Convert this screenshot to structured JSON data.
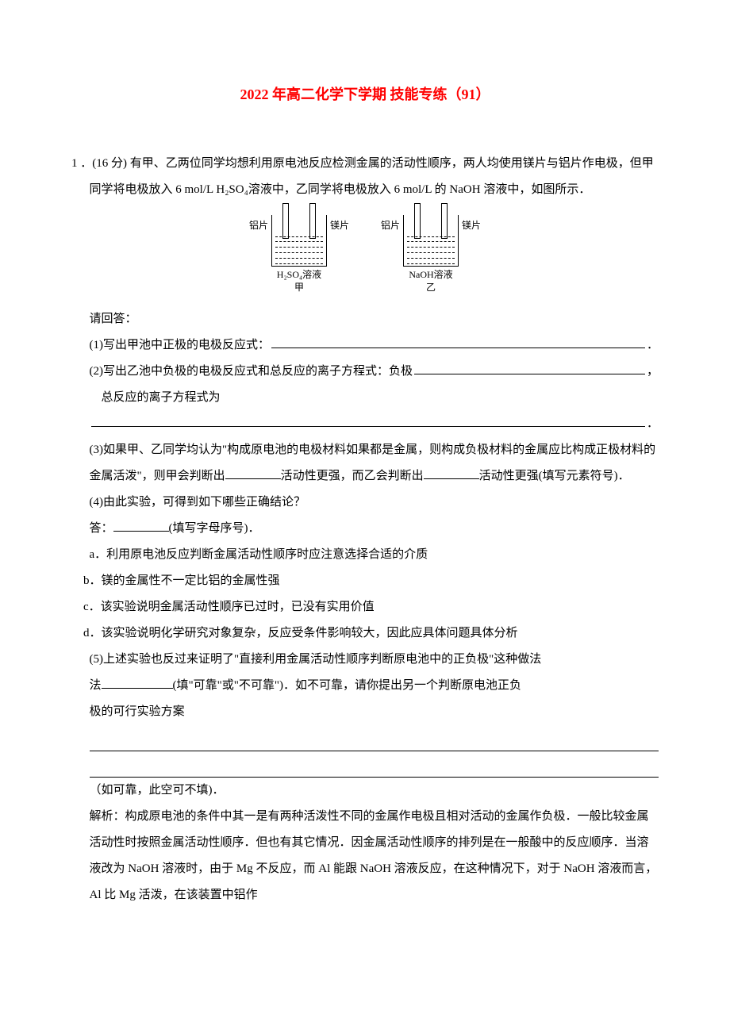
{
  "title": "2022 年高二化学下学期 技能专练（91）",
  "question": {
    "number": "1",
    "points": "．(16 分)",
    "intro": "有甲、乙两位同学均想利用原电池反应检测金属的活动性顺序，两人均使用镁片与铝片作电极，但甲同学将电极放入 6 mol/L H₂SO₄溶液中，乙同学将电极放入 6 mol/L 的 NaOH 溶液中，如图所示．"
  },
  "diagram": {
    "left": {
      "electrode_left": "铝片",
      "electrode_right": "镁片",
      "solution": "H₂SO₄溶液",
      "label": "甲"
    },
    "right": {
      "electrode_left": "铝片",
      "electrode_right": "镁片",
      "solution": "NaOH溶液",
      "label": "乙"
    }
  },
  "prompts": {
    "answer_label": "请回答：",
    "p1": "(1)写出甲池中正极的电极反应式：",
    "p1_end": "．",
    "p2_line1": "(2)写出乙池中负极的电极反应式和总反应的离子方程式：负极",
    "p2_line1_end": "，",
    "p2_line2": "总反应的离子方程式为",
    "p2_end": "．",
    "p3_part1": "(3)如果甲、乙同学均认为\"构成原电池的电极材料如果都是金属，则构成负极材料的金属应比构成正极材料的金属活泼\"，则甲会判断出",
    "p3_part2": "活动性更强，而乙会判断出",
    "p3_part3": "活动性更强(填写元素符号)．",
    "p4": "(4)由此实验，可得到如下哪些正确结论？",
    "p4_answer": "答：",
    "p4_answer_end": "(填写字母序号)．",
    "options": {
      "a": "a．利用原电池反应判断金属活动性顺序时应注意选择合适的介质",
      "b": "b．镁的金属性不一定比铝的金属性强",
      "c": "c．该实验说明金属活动性顺序已过时，已没有实用价值",
      "d": "d．该实验说明化学研究对象复杂，反应受条件影响较大，因此应具体问题具体分析"
    },
    "p5_line1": "(5)上述实验也反过来证明了\"直接利用金属活动性顺序判断原电池中的正负极\"这种做法",
    "p5_line2a": "(填\"可靠\"或\"不可靠\")．如不可靠，请你提出另一个判断原电池正负",
    "p5_line3_chars": [
      "极",
      "的",
      "可",
      "行",
      "实",
      "验",
      "方",
      "案"
    ],
    "p5_note": "（如可靠，此空可不填)．"
  },
  "explanation": {
    "label": "解析：",
    "text": "构成原电池的条件中其一是有两种活泼性不同的金属作电极且相对活动的金属作负极．一般比较金属活动性时按照金属活动性顺序．但也有其它情况．因金属活动性顺序的排列是在一般酸中的反应顺序．当溶液改为 NaOH 溶液时，由于 Mg 不反应，而 Al 能跟 NaOH 溶液反应，在这种情况下，对于 NaOH 溶液而言，Al 比 Mg 活泼，在该装置中铝作"
  }
}
